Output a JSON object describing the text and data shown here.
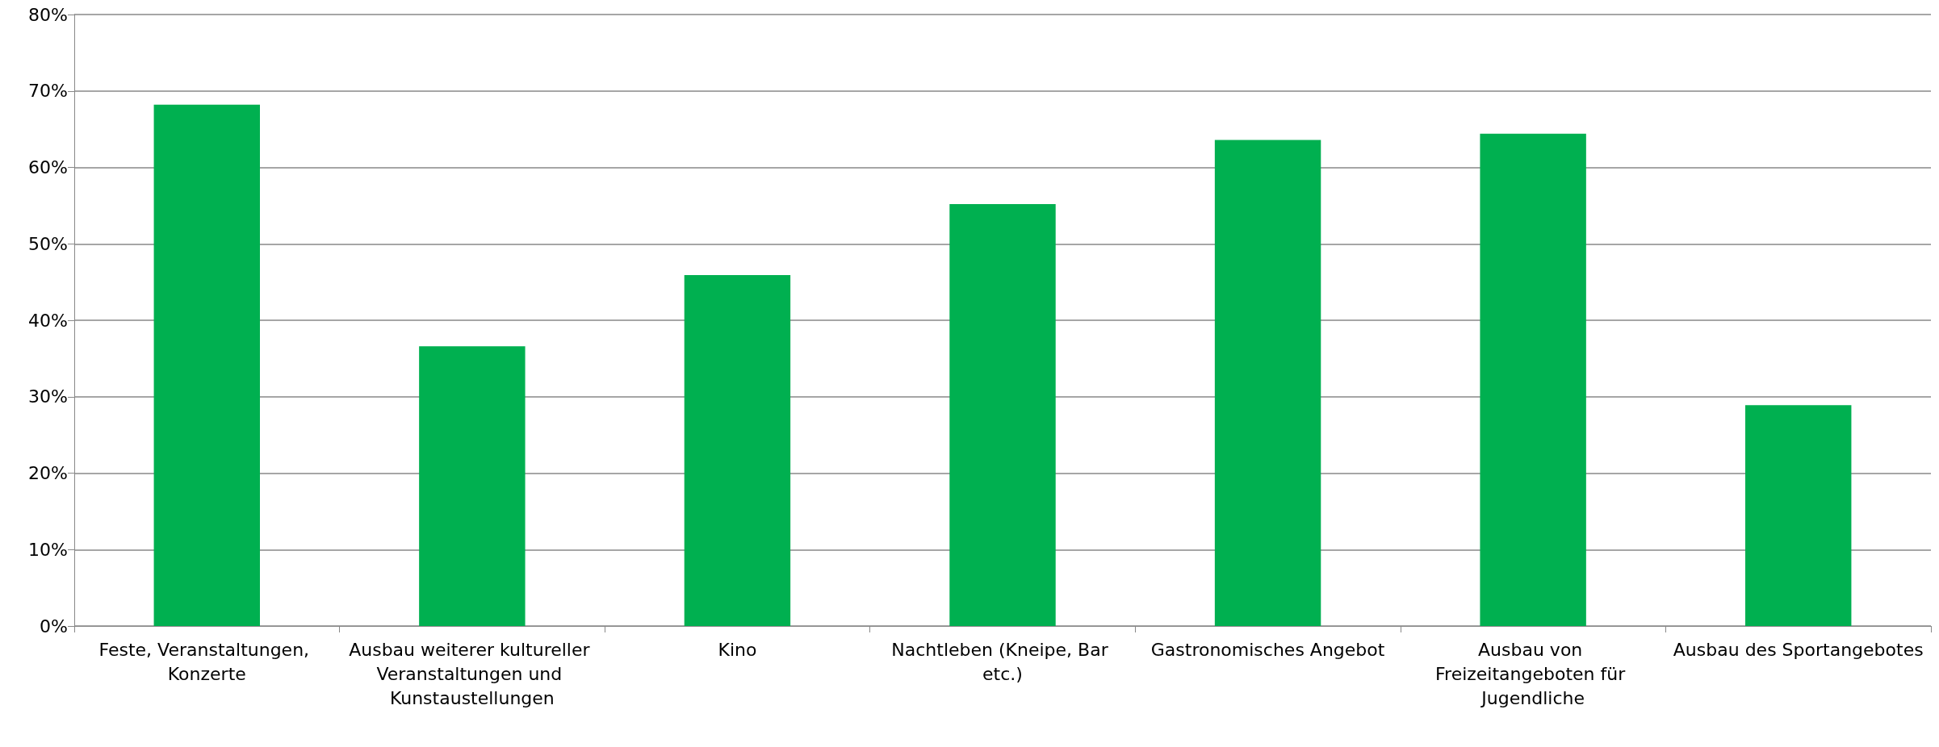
{
  "chart_data": {
    "type": "bar",
    "categories": [
      "Feste, Veranstaltungen, Konzerte",
      "Ausbau weiterer kultureller Veranstaltungen und Kunstaustellungen",
      "Kino",
      "Nachtleben (Kneipe, Bar etc.)",
      "Gastronomisches Angebot",
      "Ausbau von Freizeitangeboten für Jugendliche",
      "Ausbau des Sportangebotes"
    ],
    "values": [
      68.2,
      36.6,
      45.9,
      55.2,
      63.6,
      64.4,
      28.9
    ],
    "color": "#00b050",
    "ylim": [
      0,
      80
    ],
    "yticks": [
      {
        "value": 0,
        "label": "0%"
      },
      {
        "value": 10,
        "label": "10%"
      },
      {
        "value": 20,
        "label": "20%"
      },
      {
        "value": 30,
        "label": "30%"
      },
      {
        "value": 40,
        "label": "40%"
      },
      {
        "value": 50,
        "label": "50%"
      },
      {
        "value": 60,
        "label": "60%"
      },
      {
        "value": 70,
        "label": "70%"
      },
      {
        "value": 80,
        "label": "80%"
      }
    ],
    "grid": "y"
  }
}
